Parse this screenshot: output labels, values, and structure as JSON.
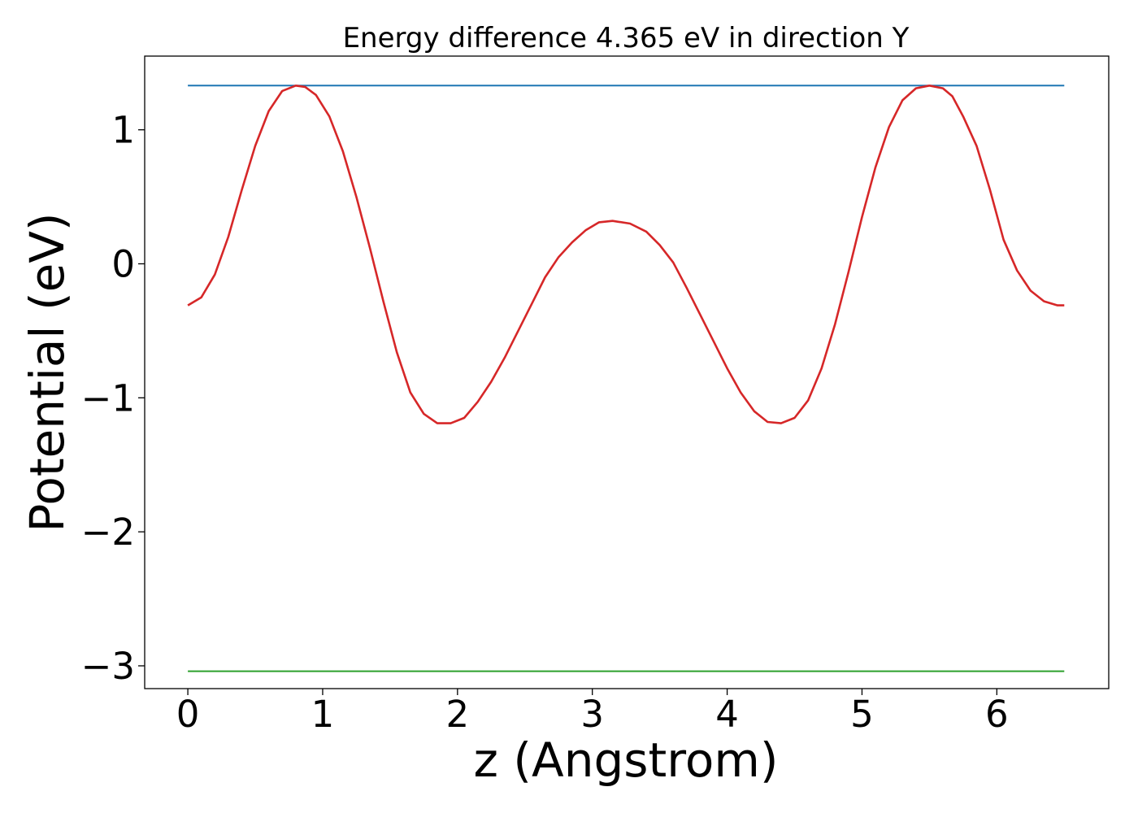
{
  "chart_data": {
    "type": "line",
    "title": "Energy difference 4.365 eV in direction Y",
    "xlabel": "z (Angstrom)",
    "ylabel": "Potential (eV)",
    "xlim": [
      -0.32,
      6.83
    ],
    "ylim": [
      -3.17,
      1.55
    ],
    "x_ticks": [
      0,
      1,
      2,
      3,
      4,
      5,
      6
    ],
    "x_tick_labels": [
      "0",
      "1",
      "2",
      "3",
      "4",
      "5",
      "6"
    ],
    "y_ticks": [
      1,
      0,
      -1,
      -2,
      -3
    ],
    "y_tick_labels": [
      "1",
      "0",
      "−1",
      "−2",
      "−3"
    ],
    "grid": false,
    "legend": "none",
    "series": [
      {
        "color": "#1f77b4",
        "x": [
          0,
          6.5
        ],
        "y": [
          1.33,
          1.33
        ]
      },
      {
        "color": "#2ca02c",
        "x": [
          0,
          6.5
        ],
        "y": [
          -3.04,
          -3.04
        ]
      },
      {
        "color": "#d62728",
        "x": [
          0,
          0.1,
          0.2,
          0.3,
          0.4,
          0.5,
          0.6,
          0.7,
          0.8,
          0.87,
          0.95,
          1.05,
          1.15,
          1.25,
          1.35,
          1.45,
          1.55,
          1.65,
          1.75,
          1.85,
          1.95,
          2.05,
          2.15,
          2.25,
          2.35,
          2.45,
          2.55,
          2.65,
          2.75,
          2.85,
          2.95,
          3.05,
          3.15,
          3.28,
          3.4,
          3.5,
          3.6,
          3.7,
          3.8,
          3.9,
          4.0,
          4.1,
          4.2,
          4.3,
          4.4,
          4.5,
          4.6,
          4.7,
          4.8,
          4.9,
          5.0,
          5.1,
          5.2,
          5.3,
          5.4,
          5.5,
          5.6,
          5.67,
          5.75,
          5.85,
          5.95,
          6.05,
          6.15,
          6.25,
          6.35,
          6.45,
          6.5
        ],
        "y": [
          -0.31,
          -0.25,
          -0.08,
          0.2,
          0.55,
          0.88,
          1.14,
          1.29,
          1.33,
          1.32,
          1.26,
          1.1,
          0.84,
          0.5,
          0.12,
          -0.28,
          -0.66,
          -0.96,
          -1.12,
          -1.19,
          -1.19,
          -1.15,
          -1.03,
          -0.88,
          -0.7,
          -0.5,
          -0.3,
          -0.1,
          0.05,
          0.16,
          0.25,
          0.31,
          0.32,
          0.3,
          0.24,
          0.14,
          0.01,
          -0.18,
          -0.38,
          -0.58,
          -0.78,
          -0.96,
          -1.1,
          -1.18,
          -1.19,
          -1.15,
          -1.02,
          -0.78,
          -0.45,
          -0.06,
          0.35,
          0.72,
          1.02,
          1.22,
          1.31,
          1.33,
          1.31,
          1.25,
          1.1,
          0.88,
          0.55,
          0.18,
          -0.05,
          -0.2,
          -0.28,
          -0.31,
          -0.31
        ]
      }
    ]
  }
}
